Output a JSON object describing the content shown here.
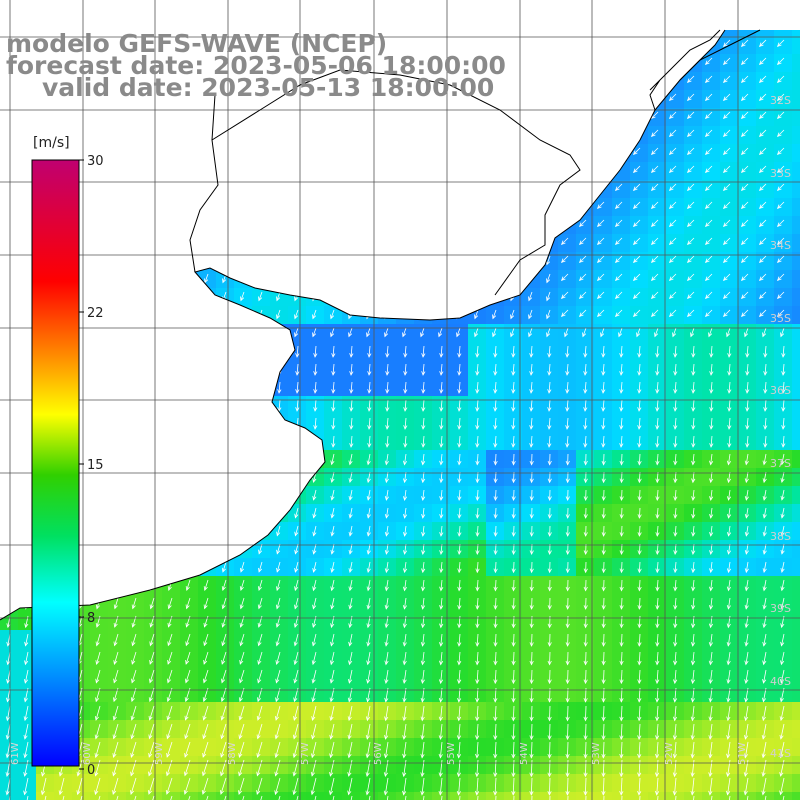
{
  "title": {
    "line1": "modelo GEFS-WAVE (NCEP)",
    "line2": "forecast date: 2023-05-06 18:00:00",
    "line3": "valid date: 2023-05-13 18:00:00"
  },
  "colorbar": {
    "unit": "[m/s]",
    "min": 0,
    "max": 30,
    "ticks": [
      "30",
      "22",
      "15",
      "8",
      "0"
    ]
  },
  "lat_labels": [
    "32S",
    "33S",
    "34S",
    "35S",
    "36S",
    "37S",
    "38S",
    "39S",
    "40S",
    "41S"
  ],
  "lon_labels": [
    "61W",
    "60W",
    "59W",
    "58W",
    "57W",
    "56W",
    "55W",
    "54W",
    "53W",
    "52W",
    "51W"
  ],
  "colors": {
    "land": "#ffffff",
    "grid": "#555555",
    "coast": "#000000",
    "arrow": "#ffffff",
    "title": "#8a8a8a"
  }
}
